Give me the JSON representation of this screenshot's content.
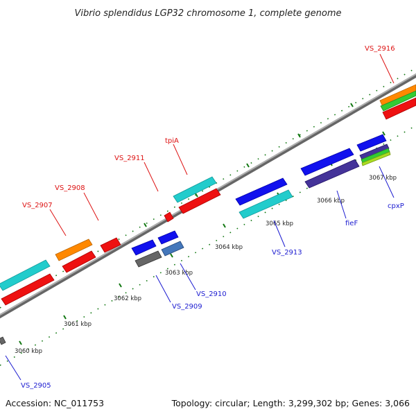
{
  "title": "Vibrio splendidus LGP32 chromosome 1, complete genome",
  "footer": {
    "accession": "Accession: NC_011753",
    "stats": "Topology: circular; Length: 3,299,302 bp; Genes: 3,066"
  },
  "kbp_labels": [
    "3060 kbp",
    "3061 kbp",
    "3062 kbp",
    "3063 kbp",
    "3064 kbp",
    "3065 kbp",
    "3066 kbp",
    "3067 kbp"
  ],
  "gene_labels": {
    "top": [
      "VS_2907",
      "VS_2908",
      "VS_2911",
      "tpiA",
      "VS_2916"
    ],
    "bottom": [
      "VS_2905",
      "VS_2909",
      "VS_2910",
      "VS_2913",
      "fieF",
      "cpxP"
    ]
  },
  "colors": {
    "label_top": "#dd1111",
    "label_bottom": "#1a1ad0",
    "backbone": "#8a8a8a",
    "tick": "#117711",
    "gene_red": "#ee1111",
    "gene_cyan": "#22cccc",
    "gene_orange": "#ff8800",
    "gene_blue": "#1111ee",
    "gene_navy": "#443399",
    "gene_steel": "#4477bb",
    "gene_gray": "#666666",
    "gene_green": "#33cc33",
    "gene_lime": "#aadd22"
  }
}
